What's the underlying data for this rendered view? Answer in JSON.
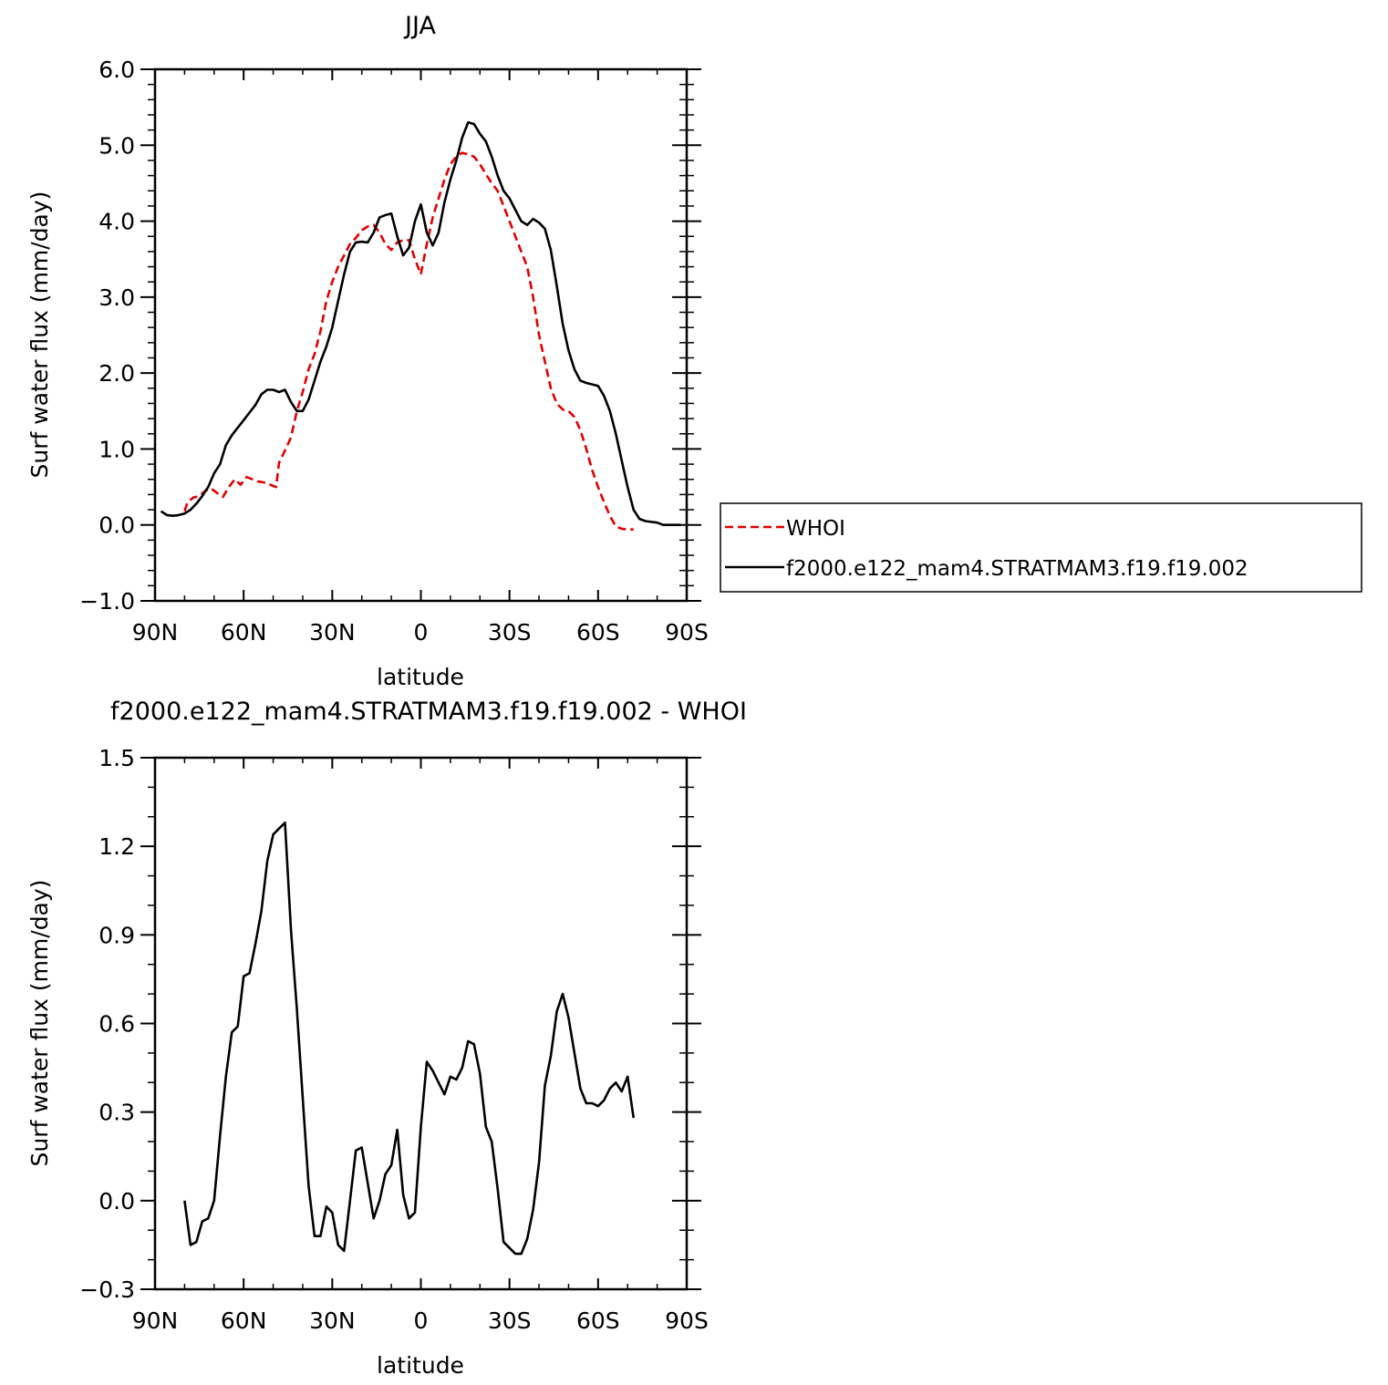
{
  "chart_data": [
    {
      "type": "line",
      "title": "JJA",
      "xlabel": "latitude",
      "ylabel": "Surf water flux (mm/day)",
      "xlim": [
        90,
        -90
      ],
      "ylim": [
        -1.0,
        6.0
      ],
      "xticks": [
        90,
        60,
        30,
        0,
        -30,
        -60,
        -90
      ],
      "xtick_labels": [
        "90N",
        "60N",
        "30N",
        "0",
        "30S",
        "60S",
        "90S"
      ],
      "yticks": [
        -1.0,
        0.0,
        1.0,
        2.0,
        3.0,
        4.0,
        5.0,
        6.0
      ],
      "ytick_labels": [
        "-1.0",
        "0.0",
        "1.0",
        "2.0",
        "3.0",
        "4.0",
        "5.0",
        "6.0"
      ],
      "legend_position": "right",
      "series": [
        {
          "name": "WHOI",
          "color": "#e00000",
          "dash": "dashed",
          "x": [
            80,
            79,
            77,
            75,
            73,
            71,
            69,
            67,
            65,
            63,
            61,
            59,
            57,
            55,
            53,
            51,
            49,
            48,
            46,
            44,
            42,
            40,
            38,
            36,
            34,
            32,
            30,
            28,
            26,
            24,
            22,
            20,
            18,
            16,
            14,
            12,
            10,
            8,
            6,
            4,
            2,
            0,
            -2,
            -4,
            -6,
            -8,
            -10,
            -12,
            -14,
            -16,
            -18,
            -20,
            -22,
            -24,
            -26,
            -28,
            -30,
            -32,
            -34,
            -36,
            -38,
            -40,
            -42,
            -44,
            -46,
            -48,
            -50,
            -52,
            -54,
            -56,
            -58,
            -60,
            -62,
            -64,
            -66,
            -68,
            -70,
            -72
          ],
          "y": [
            0.18,
            0.3,
            0.36,
            0.38,
            0.45,
            0.48,
            0.42,
            0.37,
            0.5,
            0.6,
            0.53,
            0.63,
            0.6,
            0.57,
            0.56,
            0.53,
            0.5,
            0.82,
            0.98,
            1.15,
            1.5,
            1.75,
            2.05,
            2.25,
            2.55,
            2.95,
            3.2,
            3.4,
            3.55,
            3.7,
            3.78,
            3.88,
            3.93,
            3.95,
            3.85,
            3.7,
            3.62,
            3.72,
            3.75,
            3.75,
            3.5,
            3.3,
            3.7,
            4.05,
            4.3,
            4.55,
            4.75,
            4.85,
            4.9,
            4.88,
            4.85,
            4.75,
            4.62,
            4.5,
            4.4,
            4.2,
            4.0,
            3.8,
            3.6,
            3.4,
            3.0,
            2.5,
            2.15,
            1.8,
            1.6,
            1.52,
            1.5,
            1.42,
            1.25,
            1.0,
            0.72,
            0.5,
            0.3,
            0.12,
            -0.02,
            -0.05,
            -0.06,
            -0.06
          ]
        },
        {
          "name": "f2000.e122_mam4.STRATMAM3.f19.f19.002",
          "color": "#000000",
          "dash": "solid",
          "x": [
            88,
            86,
            84,
            82,
            80,
            78,
            76,
            74,
            72,
            70,
            68,
            66,
            64,
            62,
            60,
            58,
            56,
            54,
            52,
            50,
            48,
            46,
            44,
            42,
            40,
            38,
            36,
            34,
            32,
            30,
            28,
            26,
            24,
            22,
            20,
            18,
            16,
            14,
            12,
            10,
            8,
            6,
            4,
            2,
            0,
            -2,
            -4,
            -6,
            -8,
            -10,
            -12,
            -14,
            -16,
            -18,
            -20,
            -22,
            -24,
            -26,
            -28,
            -30,
            -32,
            -34,
            -36,
            -38,
            -40,
            -42,
            -44,
            -46,
            -48,
            -50,
            -52,
            -54,
            -56,
            -58,
            -60,
            -62,
            -64,
            -66,
            -68,
            -70,
            -72,
            -74,
            -76,
            -78,
            -80,
            -82,
            -84,
            -86,
            -88
          ],
          "y": [
            0.18,
            0.13,
            0.12,
            0.13,
            0.15,
            0.2,
            0.28,
            0.38,
            0.5,
            0.68,
            0.8,
            1.05,
            1.18,
            1.28,
            1.38,
            1.48,
            1.58,
            1.72,
            1.78,
            1.78,
            1.75,
            1.78,
            1.62,
            1.5,
            1.5,
            1.65,
            1.9,
            2.15,
            2.35,
            2.6,
            2.95,
            3.3,
            3.6,
            3.72,
            3.73,
            3.72,
            3.85,
            4.05,
            4.08,
            4.1,
            3.8,
            3.55,
            3.65,
            4.0,
            4.22,
            3.85,
            3.68,
            3.85,
            4.25,
            4.55,
            4.8,
            5.1,
            5.3,
            5.28,
            5.15,
            5.05,
            4.85,
            4.6,
            4.4,
            4.3,
            4.15,
            4.0,
            3.95,
            4.03,
            3.98,
            3.9,
            3.62,
            3.15,
            2.65,
            2.3,
            2.05,
            1.9,
            1.87,
            1.85,
            1.83,
            1.7,
            1.5,
            1.2,
            0.85,
            0.5,
            0.2,
            0.08,
            0.05,
            0.04,
            0.03,
            0.0,
            0.0,
            0.0,
            0.0
          ]
        }
      ]
    },
    {
      "type": "line",
      "title": "f2000.e122_mam4.STRATMAM3.f19.f19.002 - WHOI",
      "xlabel": "latitude",
      "ylabel": "Surf water flux (mm/day)",
      "xlim": [
        90,
        -90
      ],
      "ylim": [
        -0.3,
        1.5
      ],
      "xticks": [
        90,
        60,
        30,
        0,
        -30,
        -60,
        -90
      ],
      "xtick_labels": [
        "90N",
        "60N",
        "30N",
        "0",
        "30S",
        "60S",
        "90S"
      ],
      "yticks": [
        -0.3,
        0.0,
        0.3,
        0.6,
        0.9,
        1.2,
        1.5
      ],
      "ytick_labels": [
        "-0.3",
        "0.0",
        "0.3",
        "0.6",
        "0.9",
        "1.2",
        "1.5"
      ],
      "series": [
        {
          "color": "#000000",
          "dash": "solid",
          "x": [
            80,
            78,
            76,
            74,
            72,
            70,
            68,
            66,
            64,
            62,
            60,
            58,
            56,
            54,
            52,
            50,
            48,
            46,
            44,
            42,
            40,
            38,
            36,
            34,
            32,
            30,
            28,
            26,
            24,
            22,
            20,
            18,
            16,
            14,
            12,
            10,
            8,
            6,
            4,
            2,
            0,
            -2,
            -4,
            -6,
            -8,
            -10,
            -12,
            -14,
            -16,
            -18,
            -20,
            -22,
            -24,
            -26,
            -28,
            -30,
            -32,
            -34,
            -36,
            -38,
            -40,
            -42,
            -44,
            -46,
            -48,
            -50,
            -52,
            -54,
            -56,
            -58,
            -60,
            -62,
            -64,
            -66,
            -68,
            -70,
            -72
          ],
          "y": [
            0.0,
            -0.15,
            -0.14,
            -0.07,
            -0.06,
            0.0,
            0.22,
            0.42,
            0.57,
            0.59,
            0.76,
            0.77,
            0.87,
            0.98,
            1.15,
            1.24,
            1.26,
            1.28,
            0.92,
            0.65,
            0.35,
            0.05,
            -0.12,
            -0.12,
            -0.02,
            -0.04,
            -0.15,
            -0.17,
            0.0,
            0.17,
            0.18,
            0.06,
            -0.06,
            0.0,
            0.09,
            0.12,
            0.24,
            0.02,
            -0.06,
            -0.04,
            0.25,
            0.47,
            0.44,
            0.4,
            0.36,
            0.42,
            0.41,
            0.45,
            0.54,
            0.53,
            0.43,
            0.25,
            0.2,
            0.04,
            -0.14,
            -0.16,
            -0.18,
            -0.18,
            -0.13,
            -0.03,
            0.13,
            0.39,
            0.49,
            0.64,
            0.7,
            0.62,
            0.5,
            0.38,
            0.33,
            0.33,
            0.32,
            0.34,
            0.38,
            0.4,
            0.37,
            0.42,
            0.28
          ]
        }
      ]
    }
  ]
}
